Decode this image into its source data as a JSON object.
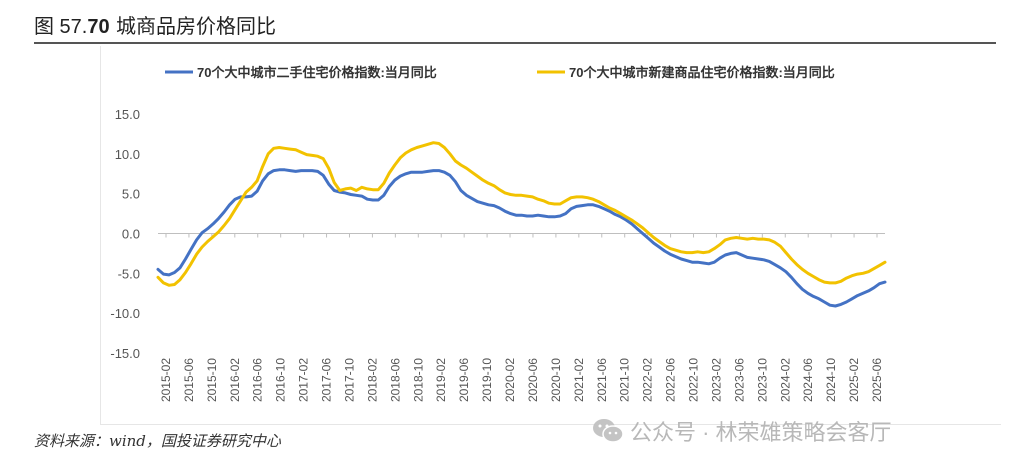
{
  "figure": {
    "title_prefix": "图 57.",
    "title_bold": "70",
    "title_rest": "城商品房价格同比",
    "source": "资料来源：wind，国投证券研究中心",
    "watermark": "公众号 · 林荣雄策略会客厅",
    "watermark_icon": "wechat-icon"
  },
  "chart_data": {
    "type": "line",
    "title": "",
    "xlabel": "",
    "ylabel": "",
    "ylim": [
      -15,
      15
    ],
    "yticks": [
      15.0,
      10.0,
      5.0,
      0.0,
      -5.0,
      -10.0,
      -15.0
    ],
    "ytick_labels": [
      "15.0",
      "10.0",
      "5.0",
      "0.0",
      "-5.0",
      "-10.0",
      "-15.0"
    ],
    "grid": false,
    "legend_position": "top",
    "x_tick_labels": [
      "2015-02",
      "2015-06",
      "2015-10",
      "2016-02",
      "2016-06",
      "2016-10",
      "2017-02",
      "2017-06",
      "2017-10",
      "2018-02",
      "2018-06",
      "2018-10",
      "2019-02",
      "2019-06",
      "2019-10",
      "2020-02",
      "2020-06",
      "2020-10",
      "2021-02",
      "2021-06",
      "2021-10",
      "2022-02",
      "2022-06",
      "2022-10",
      "2023-02",
      "2023-06",
      "2023-10",
      "2024-02",
      "2024-06",
      "2024-10",
      "2025-02",
      "2025-06"
    ],
    "series": [
      {
        "name": "70个大中城市二手住宅价格指数:当月同比",
        "color": "#4472C4",
        "values": [
          -4.5,
          -5.1,
          -5.2,
          -4.9,
          -4.3,
          -3.2,
          -2.0,
          -0.8,
          0.1,
          0.6,
          1.2,
          1.9,
          2.7,
          3.6,
          4.3,
          4.6,
          4.6,
          4.7,
          5.3,
          6.6,
          7.5,
          7.9,
          8.0,
          8.0,
          7.9,
          7.8,
          7.9,
          7.9,
          7.9,
          7.8,
          7.3,
          6.2,
          5.4,
          5.2,
          5.1,
          4.9,
          4.8,
          4.7,
          4.3,
          4.2,
          4.2,
          4.8,
          5.9,
          6.7,
          7.2,
          7.5,
          7.7,
          7.7,
          7.7,
          7.8,
          7.9,
          7.9,
          7.7,
          7.3,
          6.5,
          5.4,
          4.8,
          4.4,
          4.0,
          3.8,
          3.6,
          3.5,
          3.2,
          2.8,
          2.5,
          2.3,
          2.3,
          2.2,
          2.2,
          2.3,
          2.2,
          2.1,
          2.1,
          2.2,
          2.5,
          3.1,
          3.4,
          3.5,
          3.6,
          3.6,
          3.4,
          3.1,
          2.8,
          2.4,
          2.1,
          1.7,
          1.2,
          0.6,
          0.0,
          -0.6,
          -1.2,
          -1.7,
          -2.2,
          -2.6,
          -2.9,
          -3.2,
          -3.4,
          -3.6,
          -3.6,
          -3.7,
          -3.8,
          -3.6,
          -3.1,
          -2.7,
          -2.5,
          -2.4,
          -2.7,
          -3.0,
          -3.1,
          -3.2,
          -3.3,
          -3.5,
          -3.9,
          -4.3,
          -4.8,
          -5.5,
          -6.3,
          -7.0,
          -7.5,
          -7.9,
          -8.2,
          -8.6,
          -9.0,
          -9.1,
          -8.9,
          -8.6,
          -8.2,
          -7.8,
          -7.5,
          -7.2,
          -6.8,
          -6.3,
          -6.1
        ]
      },
      {
        "name": "70个大中城市新建商品住宅价格指数:当月同比",
        "color": "#F2C200",
        "values": [
          -5.5,
          -6.2,
          -6.5,
          -6.4,
          -5.8,
          -4.9,
          -3.8,
          -2.6,
          -1.7,
          -1.0,
          -0.4,
          0.2,
          1.0,
          1.9,
          3.0,
          4.1,
          5.2,
          5.8,
          6.6,
          8.4,
          10.0,
          10.7,
          10.8,
          10.7,
          10.6,
          10.5,
          10.2,
          9.9,
          9.8,
          9.7,
          9.4,
          8.2,
          6.4,
          5.4,
          5.6,
          5.7,
          5.4,
          5.8,
          5.6,
          5.5,
          5.5,
          6.3,
          7.6,
          8.6,
          9.5,
          10.1,
          10.5,
          10.8,
          11.0,
          11.2,
          11.4,
          11.3,
          10.8,
          10.0,
          9.1,
          8.6,
          8.2,
          7.7,
          7.2,
          6.7,
          6.3,
          6.0,
          5.5,
          5.1,
          4.9,
          4.8,
          4.8,
          4.7,
          4.6,
          4.3,
          4.1,
          3.8,
          3.7,
          3.7,
          4.1,
          4.5,
          4.6,
          4.6,
          4.5,
          4.3,
          4.0,
          3.6,
          3.2,
          2.9,
          2.5,
          2.1,
          1.7,
          1.2,
          0.7,
          0.1,
          -0.5,
          -1.0,
          -1.5,
          -1.9,
          -2.1,
          -2.3,
          -2.4,
          -2.4,
          -2.3,
          -2.4,
          -2.3,
          -1.9,
          -1.4,
          -0.8,
          -0.6,
          -0.5,
          -0.6,
          -0.7,
          -0.6,
          -0.7,
          -0.7,
          -0.8,
          -1.1,
          -1.6,
          -2.4,
          -3.2,
          -3.9,
          -4.5,
          -5.0,
          -5.4,
          -5.8,
          -6.1,
          -6.2,
          -6.2,
          -6.0,
          -5.6,
          -5.3,
          -5.1,
          -5.0,
          -4.8,
          -4.4,
          -4.0,
          -3.6
        ]
      }
    ]
  }
}
